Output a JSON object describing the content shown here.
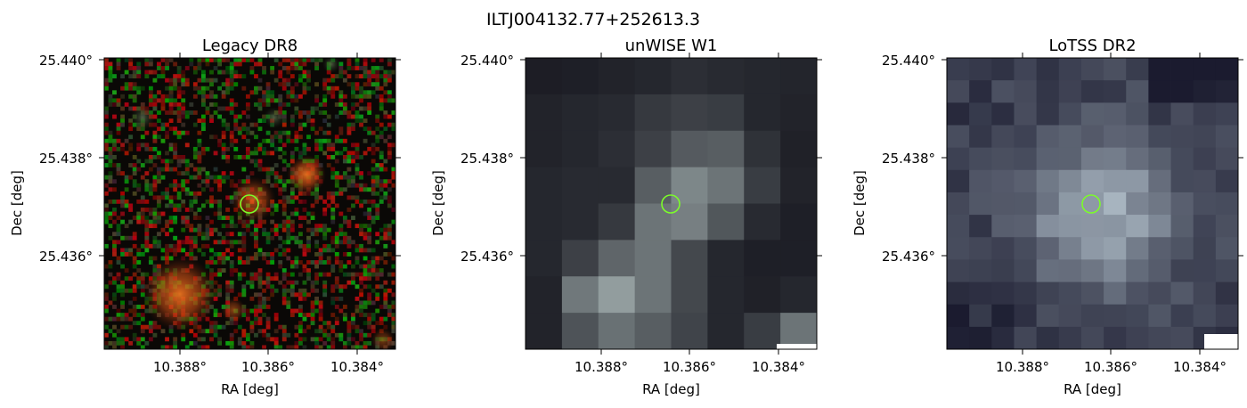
{
  "figure": {
    "title": "ILTJ004132.77+252613.3",
    "marker_color": "#7CFC2A"
  },
  "panels": [
    {
      "id": "legacy",
      "title": "Legacy DR8",
      "style": "rgb-noise",
      "xlabel": "RA [deg]",
      "ylabel": "Dec [deg]",
      "xticks": [
        "10.388°",
        "10.386°",
        "10.384°"
      ],
      "yticks": [
        "25.440°",
        "25.438°",
        "25.436°"
      ]
    },
    {
      "id": "unwise",
      "title": "unWISE W1",
      "style": "grey-blocks",
      "xlabel": "RA [deg]",
      "ylabel": "Dec [deg]",
      "xticks": [
        "10.388°",
        "10.386°",
        "10.384°"
      ],
      "yticks": [
        "25.440°",
        "25.438°",
        "25.436°"
      ]
    },
    {
      "id": "lotss",
      "title": "LoTSS DR2",
      "style": "grey-lavender",
      "xlabel": "RA [deg]",
      "ylabel": "Dec [deg]",
      "xticks": [
        "10.388°",
        "10.386°",
        "10.384°"
      ],
      "yticks": [
        "25.440°",
        "25.438°",
        "25.436°"
      ]
    }
  ]
}
